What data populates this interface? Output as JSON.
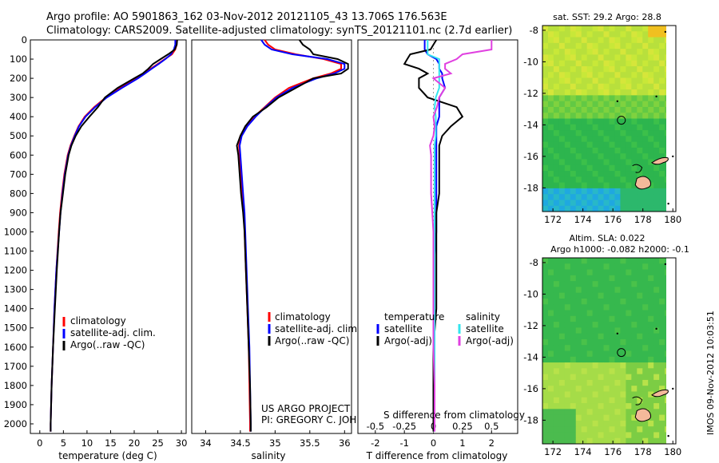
{
  "header": {
    "line1": "Argo profile: AO 5901863_162 03-Nov-2012 20121105_43 13.706S 176.563E",
    "line2": "Climatology: CARS2009. Satellite-adjusted climatology: synTS_20121101.nc (2.7d earlier)"
  },
  "colors": {
    "climatology": "#ff0000",
    "satellite": "#0000ff",
    "argo": "#000000",
    "salinity_sat": "#33e5ee",
    "salinity_argo": "#e040e0"
  },
  "footer": {
    "project": "US ARGO PROJECT",
    "pi": "PI: GREGORY C. JOHNSON",
    "stamp": "IMOS 09-Nov-2012 10:03:51"
  },
  "chart_data": [
    {
      "id": "temperature",
      "type": "line",
      "xlabel": "temperature (deg C)",
      "xlim": [
        -2,
        31
      ],
      "ylim": [
        0,
        2050
      ],
      "yticks": [
        "0",
        "100",
        "200",
        "300",
        "400",
        "500",
        "600",
        "700",
        "800",
        "900",
        "1000",
        "1100",
        "1200",
        "1300",
        "1400",
        "1500",
        "1600",
        "1700",
        "1800",
        "1900",
        "2000"
      ],
      "xticks": [
        "0",
        "5",
        "10",
        "15",
        "20",
        "25",
        "30"
      ],
      "xtick_values": [
        0,
        5,
        10,
        15,
        20,
        25,
        30
      ],
      "legend": [
        "climatology",
        "satellite-adj. clim.",
        "Argo(..raw -QC)"
      ],
      "depth": [
        0,
        25,
        50,
        75,
        100,
        125,
        150,
        175,
        200,
        250,
        300,
        350,
        400,
        450,
        500,
        550,
        600,
        700,
        800,
        900,
        1000,
        1200,
        1400,
        1600,
        1800,
        2000,
        2040
      ],
      "series": [
        {
          "name": "climatology",
          "values": [
            29.0,
            29.0,
            28.7,
            28.0,
            26.5,
            25.0,
            23.5,
            22.0,
            20.5,
            17.0,
            14.0,
            11.5,
            9.5,
            8.2,
            7.3,
            6.5,
            5.9,
            5.2,
            4.7,
            4.3,
            4.0,
            3.5,
            3.1,
            2.8,
            2.5,
            2.3,
            2.3
          ]
        },
        {
          "name": "satellite",
          "values": [
            28.7,
            28.7,
            28.4,
            27.8,
            26.6,
            25.2,
            23.7,
            22.3,
            20.8,
            17.4,
            14.2,
            11.7,
            9.7,
            8.3,
            7.4,
            6.6,
            6.0,
            5.3,
            4.8,
            4.4,
            4.1,
            3.5,
            3.1,
            2.8,
            2.5,
            2.3,
            2.3
          ]
        },
        {
          "name": "argo",
          "values": [
            29.1,
            29.0,
            28.6,
            27.2,
            25.6,
            24.0,
            23.0,
            21.8,
            20.0,
            16.5,
            13.8,
            12.3,
            10.5,
            8.8,
            7.6,
            6.7,
            6.1,
            5.4,
            4.9,
            4.4,
            4.1,
            3.6,
            3.2,
            2.8,
            2.5,
            2.3,
            2.3
          ]
        }
      ]
    },
    {
      "id": "salinity",
      "type": "line",
      "xlabel": "salinity",
      "xlim": [
        33.8,
        36.1
      ],
      "ylim": [
        0,
        2050
      ],
      "xticks": [
        "34",
        "34.5",
        "35",
        "35.5",
        "36"
      ],
      "xtick_values": [
        34,
        34.5,
        35,
        35.5,
        36
      ],
      "legend": [
        "climatology",
        "satellite-adj. clim.",
        "Argo(..raw -QC)"
      ],
      "depth": [
        0,
        25,
        50,
        75,
        100,
        125,
        150,
        175,
        200,
        250,
        300,
        350,
        400,
        450,
        500,
        550,
        600,
        700,
        800,
        900,
        1000,
        1200,
        1400,
        1600,
        1800,
        2000,
        2040
      ],
      "series": [
        {
          "name": "climatology",
          "values": [
            34.85,
            34.9,
            35.0,
            35.3,
            35.7,
            35.95,
            35.95,
            35.8,
            35.55,
            35.2,
            35.0,
            34.85,
            34.7,
            34.58,
            34.5,
            34.48,
            34.49,
            34.51,
            34.53,
            34.55,
            34.56,
            34.58,
            34.6,
            34.62,
            34.63,
            34.64,
            34.64
          ]
        },
        {
          "name": "satellite",
          "values": [
            34.8,
            34.85,
            34.95,
            35.25,
            35.75,
            36.0,
            36.0,
            35.85,
            35.6,
            35.25,
            35.02,
            34.86,
            34.72,
            34.6,
            34.52,
            34.49,
            34.5,
            34.52,
            34.54,
            34.56,
            34.57,
            34.59,
            34.61,
            34.63,
            34.64,
            34.65,
            34.65
          ]
        },
        {
          "name": "argo",
          "values": [
            35.35,
            35.4,
            35.5,
            35.55,
            35.9,
            36.05,
            36.05,
            35.95,
            35.55,
            35.3,
            35.05,
            34.88,
            34.68,
            34.57,
            34.5,
            34.45,
            34.47,
            34.49,
            34.51,
            34.54,
            34.56,
            34.58,
            34.6,
            34.62,
            34.64,
            34.65,
            34.65
          ]
        }
      ]
    },
    {
      "id": "difference",
      "type": "line",
      "xlabel": "T difference from climatology",
      "xlabel_top": "S difference from climatology",
      "xlim": [
        -2.6,
        2.9
      ],
      "ylim": [
        0,
        2050
      ],
      "xticks": [
        "-2",
        "-1",
        "0",
        "1",
        "2"
      ],
      "xtick_values": [
        -2,
        -1,
        0,
        1,
        2
      ],
      "xticks_top": [
        "-0.5",
        "-0.25",
        "0",
        "0.25",
        "0.5"
      ],
      "xtick_top_values": [
        -0.5,
        -0.25,
        0,
        0.25,
        0.5
      ],
      "legend_temperature": {
        "title": "temperature",
        "items": [
          "satellite",
          "Argo(-adj)"
        ]
      },
      "legend_salinity": {
        "title": "salinity",
        "items": [
          "satellite",
          "Argo(-adj)"
        ]
      },
      "depth": [
        0,
        25,
        50,
        75,
        100,
        125,
        150,
        175,
        200,
        250,
        300,
        350,
        400,
        450,
        500,
        550,
        600,
        700,
        800,
        900,
        1000,
        1200,
        1400,
        1600,
        1800,
        2000,
        2040
      ],
      "series": [
        {
          "name": "T satellite",
          "values": [
            -0.3,
            -0.3,
            -0.3,
            -0.2,
            0.1,
            0.2,
            0.2,
            0.3,
            0.3,
            0.4,
            0.2,
            0.2,
            0.2,
            0.1,
            0.1,
            0.1,
            0.1,
            0.1,
            0.1,
            0.1,
            0.1,
            0.0,
            0.0,
            0.0,
            0.0,
            0.0,
            0.0
          ]
        },
        {
          "name": "T argo",
          "values": [
            0.1,
            0.0,
            -0.1,
            -0.8,
            -0.9,
            -1.0,
            -0.5,
            -0.2,
            -0.5,
            -0.5,
            -0.2,
            0.8,
            1.0,
            0.6,
            0.3,
            0.2,
            0.2,
            0.2,
            0.2,
            0.1,
            0.1,
            0.1,
            0.1,
            0.0,
            0.0,
            0.0,
            0.0
          ]
        },
        {
          "name": "S satellite",
          "values": [
            -0.05,
            -0.05,
            -0.05,
            -0.05,
            0.05,
            0.05,
            0.05,
            0.05,
            0.05,
            0.05,
            0.02,
            0.01,
            0.02,
            0.02,
            0.02,
            0.01,
            0.01,
            0.01,
            0.01,
            0.01,
            0.01,
            0.01,
            0.01,
            0.01,
            0.01,
            0.01,
            0.01
          ]
        },
        {
          "name": "S argo",
          "values": [
            0.5,
            0.5,
            0.5,
            0.25,
            0.2,
            0.1,
            0.1,
            0.15,
            0.0,
            0.1,
            0.05,
            0.03,
            0.0,
            0.01,
            0.0,
            -0.03,
            -0.02,
            -0.02,
            -0.02,
            -0.01,
            0.0,
            0.0,
            0.0,
            0.0,
            0.01,
            0.01,
            0.01
          ]
        }
      ]
    },
    {
      "id": "sst_map",
      "type": "heatmap",
      "title": "sat. SST: 29.2  Argo: 28.8",
      "xticks": [
        "172",
        "174",
        "176",
        "178",
        "180"
      ],
      "xtick_values": [
        172,
        174,
        176,
        178,
        180
      ],
      "yticks": [
        "-8",
        "-10",
        "-12",
        "-14",
        "-16",
        "-18"
      ],
      "ytick_values": [
        -8,
        -10,
        -12,
        -14,
        -16,
        -18
      ],
      "xlim": [
        171.3,
        180.2
      ],
      "ylim": [
        -19.5,
        -7.7
      ],
      "marker": {
        "lon": 176.563,
        "lat": -13.706
      }
    },
    {
      "id": "sla_map",
      "type": "heatmap",
      "title": "Altim. SLA: 0.022",
      "subtitle": "Argo h1000: -0.082  h2000: -0.1",
      "xticks": [
        "172",
        "174",
        "176",
        "178",
        "180"
      ],
      "xtick_values": [
        172,
        174,
        176,
        178,
        180
      ],
      "yticks": [
        "-8",
        "-10",
        "-12",
        "-14",
        "-16",
        "-18"
      ],
      "ytick_values": [
        -8,
        -10,
        -12,
        -14,
        -16,
        -18
      ],
      "xlim": [
        171.3,
        180.2
      ],
      "ylim": [
        -19.5,
        -7.7
      ],
      "marker": {
        "lon": 176.563,
        "lat": -13.706
      }
    }
  ]
}
